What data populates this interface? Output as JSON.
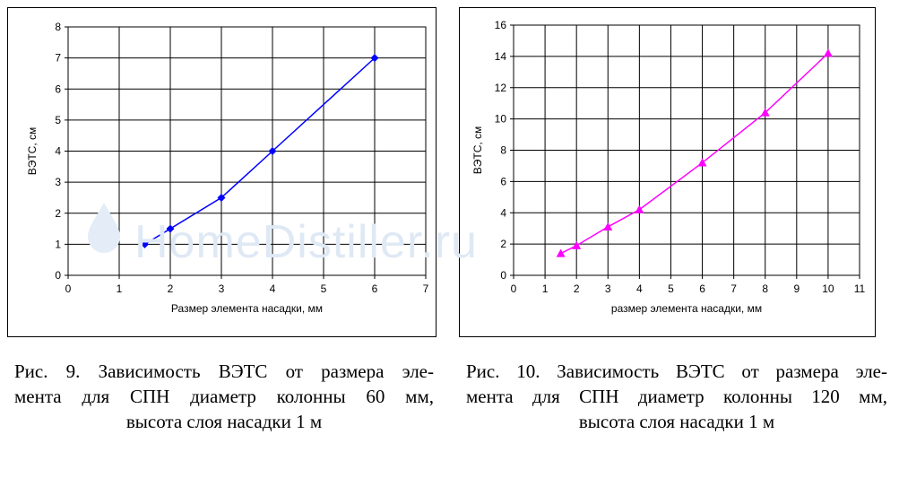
{
  "chart_data": [
    {
      "type": "line",
      "xlabel": "Размер элемента насадки, мм",
      "ylabel": "ВЭТС, см",
      "xlim": [
        0,
        7
      ],
      "ylim": [
        0,
        8
      ],
      "xticks": [
        "0",
        "1",
        "2",
        "3",
        "4",
        "5",
        "6",
        "7"
      ],
      "yticks": [
        "0",
        "1",
        "2",
        "3",
        "4",
        "5",
        "6",
        "7",
        "8"
      ],
      "grid": true,
      "color": "#0000ff",
      "marker": "diamond",
      "series": [
        {
          "x": [
            1.5,
            2,
            3,
            4,
            6
          ],
          "y": [
            1,
            1.5,
            2.5,
            4,
            7
          ]
        }
      ]
    },
    {
      "type": "line",
      "xlabel": "размер элемента насадки, мм",
      "ylabel": "ВЭТС, см",
      "xlim": [
        0,
        11
      ],
      "ylim": [
        0,
        16
      ],
      "xticks": [
        "0",
        "1",
        "2",
        "3",
        "4",
        "5",
        "6",
        "7",
        "8",
        "9",
        "10",
        "11"
      ],
      "yticks": [
        "0",
        "2",
        "4",
        "6",
        "8",
        "10",
        "12",
        "14",
        "16"
      ],
      "grid": true,
      "color": "#ff00ff",
      "marker": "triangle",
      "series": [
        {
          "x": [
            1.5,
            2,
            3,
            4,
            6,
            8,
            10
          ],
          "y": [
            1.4,
            1.9,
            3.1,
            4.2,
            7.2,
            10.4,
            14.2
          ]
        }
      ]
    }
  ],
  "captions": {
    "fig9": [
      "Рис. 9. Зависимость ВЭТС от размера эле-",
      "мента для СПН диаметр колонны 60 мм,",
      "высота слоя насадки 1 м"
    ],
    "fig10": [
      "Рис. 10. Зависимость ВЭТС от размера эле-",
      "мента для СПН диаметр колонны 120 мм,",
      "высота слоя насадки 1 м"
    ]
  },
  "watermark": "HomeDistiller.ru"
}
